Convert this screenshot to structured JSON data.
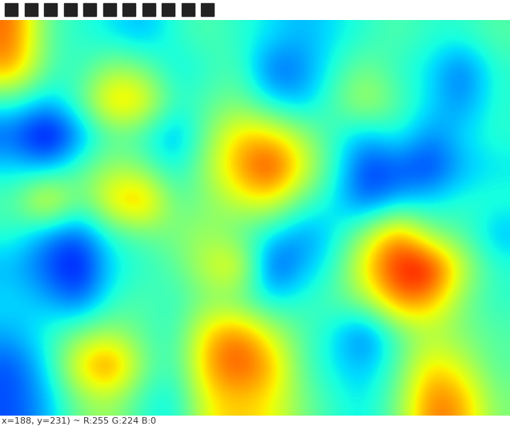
{
  "chart_data": {
    "type": "heatmap",
    "cells": [
      [
        0.8,
        0.45,
        0.4,
        0.35,
        0.3,
        0.4,
        0.45,
        0.4,
        0.35,
        0.3,
        0.35,
        0.4,
        0.45,
        0.4,
        0.4,
        0.45
      ],
      [
        0.75,
        0.45,
        0.4,
        0.55,
        0.5,
        0.35,
        0.4,
        0.45,
        0.2,
        0.25,
        0.4,
        0.5,
        0.4,
        0.35,
        0.2,
        0.4
      ],
      [
        0.4,
        0.3,
        0.45,
        0.75,
        0.7,
        0.4,
        0.45,
        0.5,
        0.35,
        0.3,
        0.45,
        0.6,
        0.45,
        0.35,
        0.25,
        0.4
      ],
      [
        0.2,
        0.05,
        0.25,
        0.45,
        0.4,
        0.25,
        0.5,
        0.7,
        0.7,
        0.55,
        0.4,
        0.3,
        0.4,
        0.25,
        0.35,
        0.4
      ],
      [
        0.35,
        0.3,
        0.45,
        0.55,
        0.5,
        0.35,
        0.55,
        0.75,
        0.9,
        0.65,
        0.4,
        0.15,
        0.2,
        0.15,
        0.3,
        0.35
      ],
      [
        0.45,
        0.75,
        0.45,
        0.7,
        0.8,
        0.45,
        0.5,
        0.6,
        0.65,
        0.45,
        0.35,
        0.2,
        0.3,
        0.35,
        0.4,
        0.4
      ],
      [
        0.4,
        0.25,
        0.2,
        0.4,
        0.45,
        0.5,
        0.55,
        0.45,
        0.35,
        0.25,
        0.35,
        0.55,
        0.8,
        0.5,
        0.45,
        0.3
      ],
      [
        0.3,
        0.2,
        0.1,
        0.35,
        0.4,
        0.45,
        0.6,
        0.7,
        0.15,
        0.3,
        0.4,
        0.7,
        0.9,
        0.95,
        0.6,
        0.4
      ],
      [
        0.35,
        0.3,
        0.2,
        0.4,
        0.45,
        0.4,
        0.5,
        0.45,
        0.35,
        0.4,
        0.45,
        0.55,
        0.8,
        0.75,
        0.5,
        0.4
      ],
      [
        0.3,
        0.4,
        0.5,
        0.55,
        0.45,
        0.4,
        0.7,
        0.8,
        0.6,
        0.45,
        0.35,
        0.2,
        0.45,
        0.55,
        0.5,
        0.45
      ],
      [
        0.2,
        0.35,
        0.7,
        0.85,
        0.5,
        0.4,
        0.75,
        0.85,
        0.75,
        0.45,
        0.35,
        0.3,
        0.45,
        0.7,
        0.6,
        0.45
      ],
      [
        0.2,
        0.3,
        0.5,
        0.55,
        0.4,
        0.35,
        0.65,
        0.7,
        0.65,
        0.5,
        0.4,
        0.35,
        0.5,
        0.8,
        0.75,
        0.5
      ]
    ],
    "color_range": [
      0,
      1
    ],
    "tick_labels": false,
    "annotation": "x=188, y=231) ~ R:255 G:224 B:0"
  }
}
